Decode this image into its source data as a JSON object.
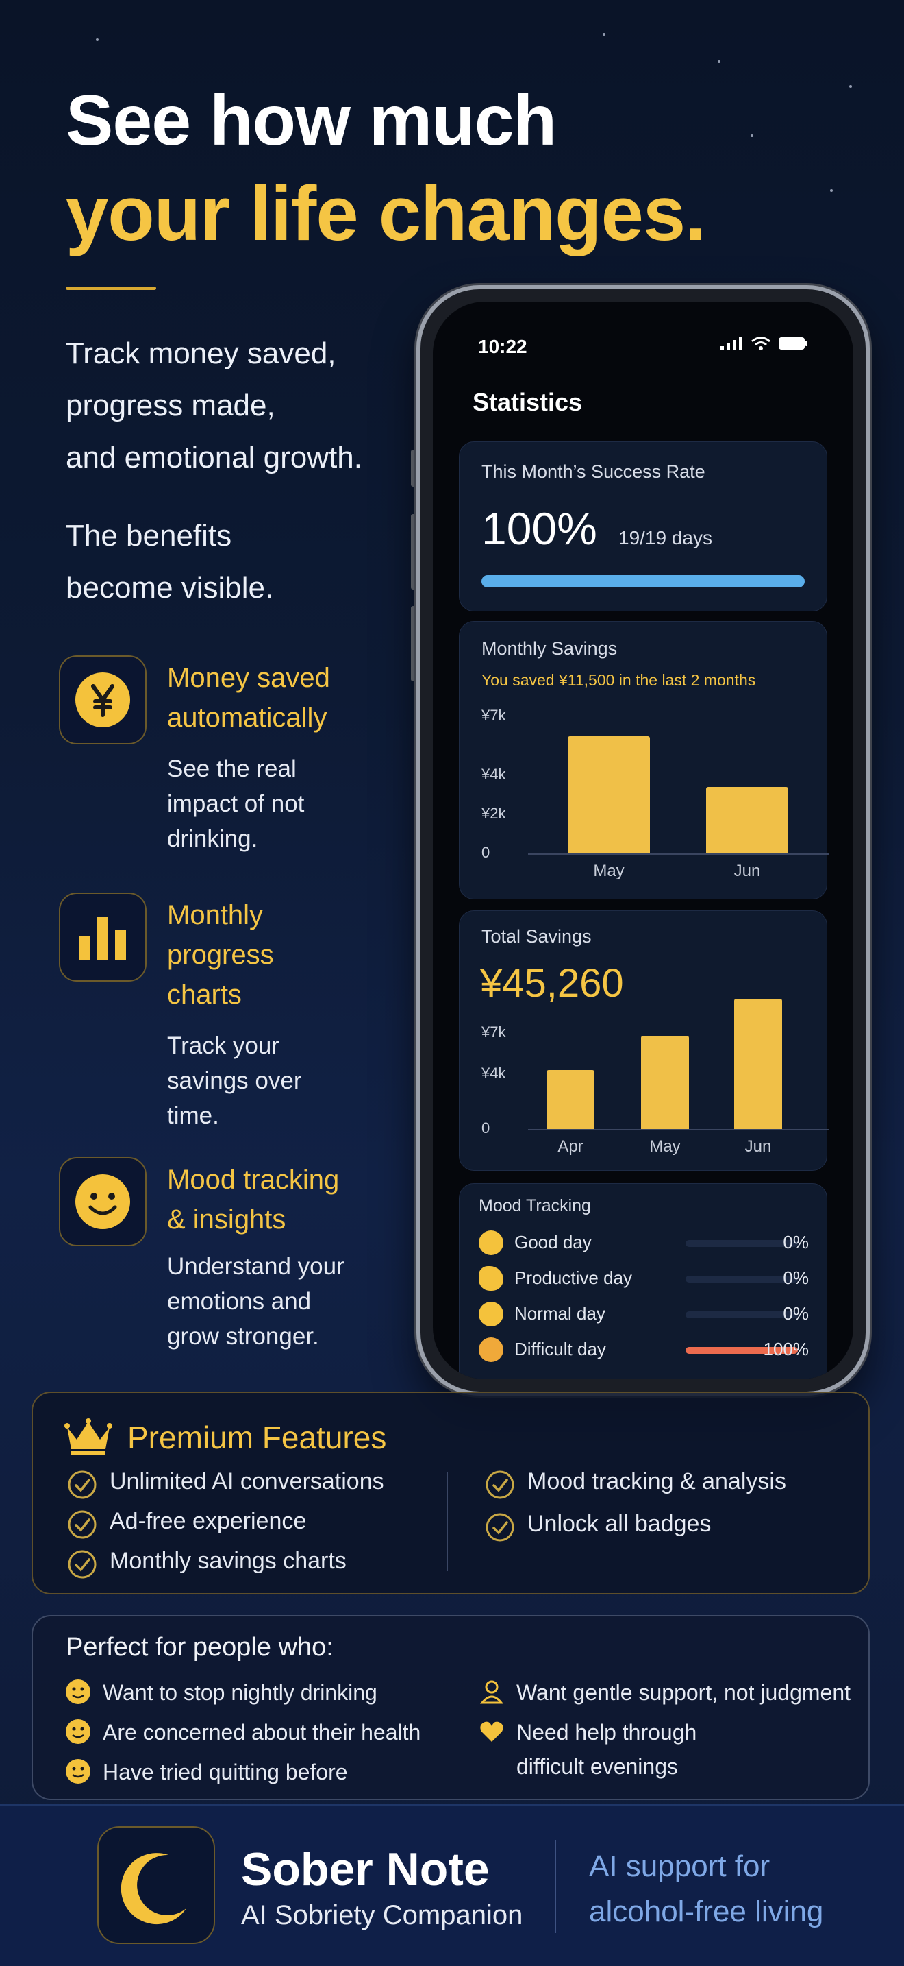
{
  "headline": {
    "line1": "See how much",
    "line2": "your life changes."
  },
  "intro": {
    "lines": [
      "Track money saved,",
      "progress made,",
      "and emotional growth."
    ],
    "benefits": [
      "The benefits",
      "become visible."
    ]
  },
  "features": [
    {
      "icon": "yen-coin-icon",
      "title_lines": [
        "Money saved",
        "automatically"
      ],
      "desc_lines": [
        "See the real",
        "impact of not",
        "drinking."
      ]
    },
    {
      "icon": "bar-chart-icon",
      "title_lines": [
        "Monthly",
        "progress",
        "charts"
      ],
      "desc_lines": [
        "Track your",
        "savings over",
        "time."
      ]
    },
    {
      "icon": "smiley-icon",
      "title_lines": [
        "Mood tracking",
        "& insights"
      ],
      "desc_lines": [
        "Understand your",
        "emotions and",
        "grow stronger."
      ]
    }
  ],
  "phone": {
    "time": "10:22",
    "screen_title": "Statistics",
    "success": {
      "label": "This Month’s Success Rate",
      "rate": "100%",
      "days": "19/19 days",
      "progress": 1.0
    },
    "monthly_savings": {
      "label": "Monthly Savings",
      "note": "You saved ¥11,500 in the last 2 months"
    },
    "total_savings": {
      "label": "Total Savings",
      "amount": "¥45,260"
    },
    "mood": {
      "label": "Mood Tracking",
      "rows": [
        {
          "label": "Good day",
          "pct": "0%",
          "value": 0,
          "icon": "grinning-face-icon"
        },
        {
          "label": "Productive day",
          "pct": "0%",
          "value": 0,
          "icon": "flexed-biceps-icon"
        },
        {
          "label": "Normal day",
          "pct": "0%",
          "value": 0,
          "icon": "neutral-face-icon"
        },
        {
          "label": "Difficult day",
          "pct": "100%",
          "value": 1,
          "icon": "persevering-face-icon"
        }
      ]
    }
  },
  "chart_data": [
    {
      "type": "bar",
      "categories": [
        "May",
        "Jun"
      ],
      "values": [
        6000,
        3400
      ],
      "ytick_labels": [
        "0",
        "¥2k",
        "¥4k",
        "¥7k"
      ],
      "yticks": [
        0,
        2000,
        4000,
        7000
      ],
      "ylim": [
        0,
        7000
      ],
      "color": "#f0c048"
    },
    {
      "type": "bar",
      "categories": [
        "Apr",
        "May",
        "Jun"
      ],
      "values": [
        4300,
        6800,
        9500
      ],
      "ytick_labels": [
        "0",
        "¥4k",
        "¥7k"
      ],
      "yticks": [
        0,
        4000,
        7000
      ],
      "ylim": [
        0,
        10000
      ],
      "color": "#f0c048"
    }
  ],
  "premium": {
    "title": "Premium Features",
    "left": [
      "Unlimited AI conversations",
      "Ad-free experience",
      "Monthly savings charts"
    ],
    "right": [
      "Mood tracking & analysis",
      "Unlock all badges"
    ]
  },
  "perfect": {
    "title": "Perfect for people who:",
    "left": [
      "Want to stop nightly drinking",
      "Are concerned about their health",
      "Have tried quitting before"
    ],
    "right": [
      "Want gentle support, not judgment",
      "Need help through",
      "difficult evenings"
    ]
  },
  "footer": {
    "app_name": "Sober Note",
    "app_sub": "AI Sobriety Companion",
    "tag_lines": [
      "AI support for",
      "alcohol-free living"
    ]
  },
  "colors": {
    "gold": "#f5c544",
    "bar": "#f0c048",
    "progress": "#5aaeea",
    "difficult": "#ec6b4e",
    "tagline": "#7fa8e6"
  }
}
